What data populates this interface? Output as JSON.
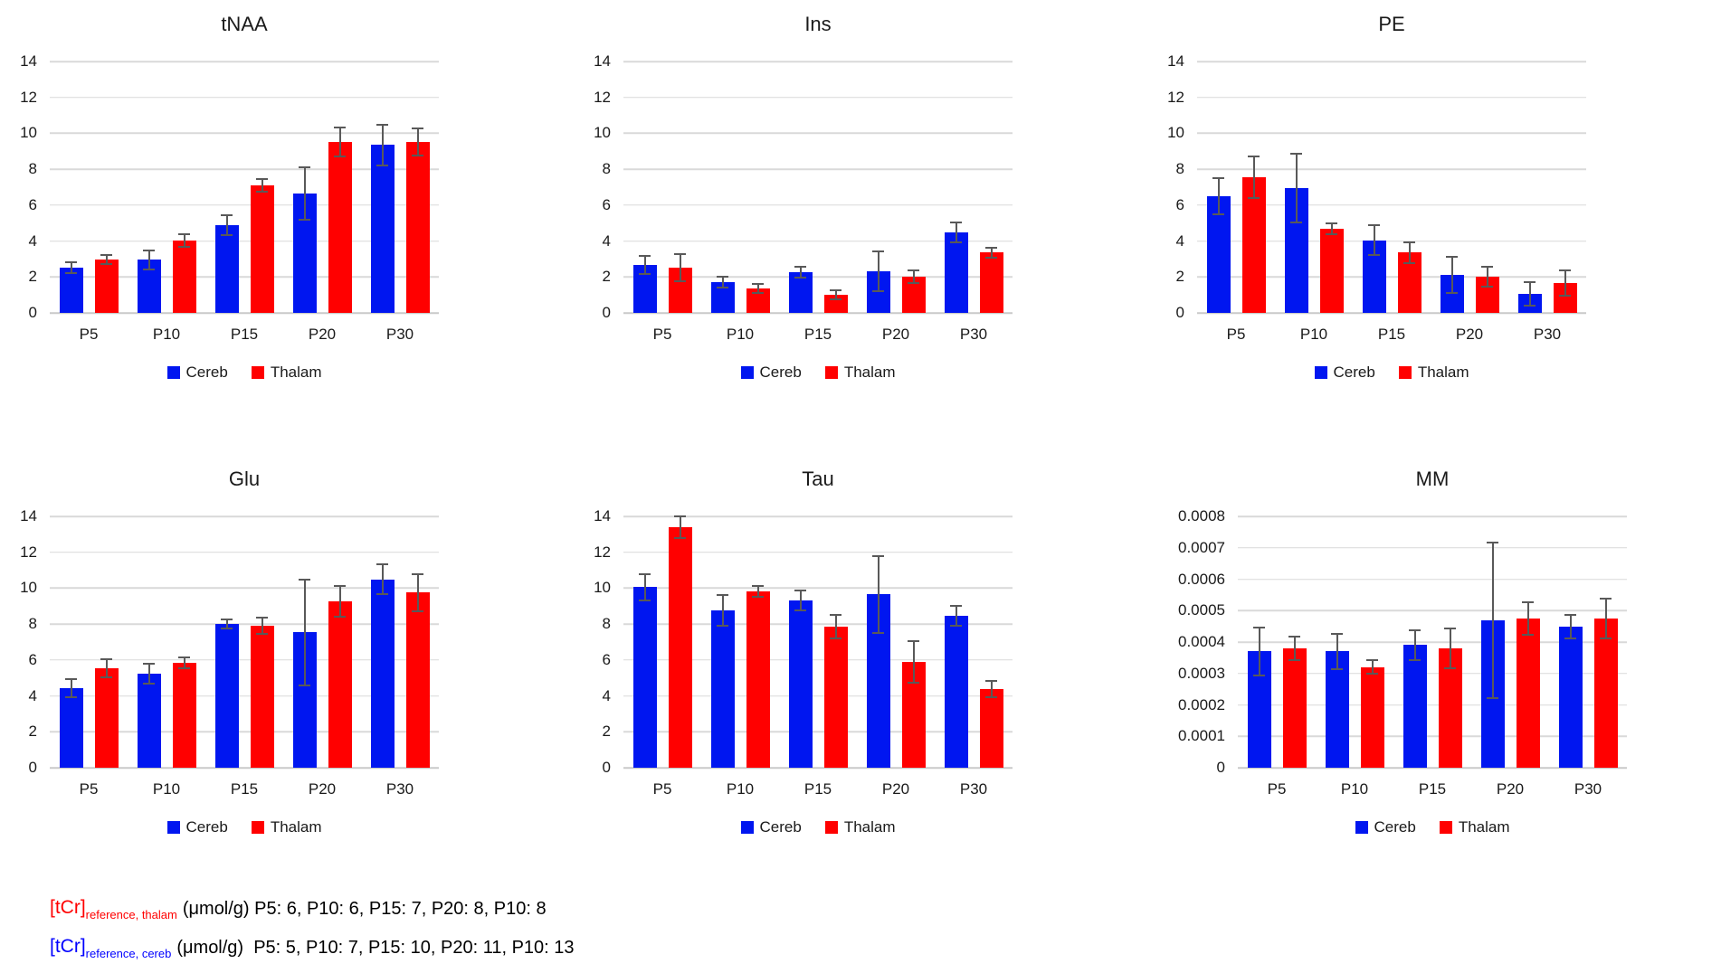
{
  "colors": {
    "cereb": "#0016f0",
    "thalam": "#ff0000",
    "error_bar": "#595959",
    "gridline": "#d9d9d9",
    "footnote_red": "#ff0000",
    "footnote_blue": "#0000ff"
  },
  "legend": {
    "items": [
      "Cereb",
      "Thalam"
    ],
    "position": "bottom"
  },
  "chart_data": [
    {
      "type": "bar",
      "title": "tNAA",
      "categories": [
        "P5",
        "P10",
        "P15",
        "P20",
        "P30"
      ],
      "series": [
        {
          "name": "Cereb",
          "color": "#0016f0",
          "values": [
            2.5,
            2.95,
            4.9,
            6.65,
            9.35
          ],
          "errors": [
            0.35,
            0.6,
            0.6,
            1.5,
            1.2
          ]
        },
        {
          "name": "Thalam",
          "color": "#ff0000",
          "values": [
            2.95,
            4.05,
            7.1,
            9.5,
            9.5
          ],
          "errors": [
            0.3,
            0.4,
            0.4,
            0.85,
            0.8
          ]
        }
      ],
      "xlabel": "",
      "ylabel": "",
      "ylim": [
        0,
        14
      ],
      "yticks": [
        "14",
        "12",
        "10",
        "8",
        "6",
        "4",
        "2",
        "0"
      ],
      "grid": true,
      "legend_position": "bottom"
    },
    {
      "type": "bar",
      "title": "Ins",
      "categories": [
        "P5",
        "P10",
        "P15",
        "P20",
        "P30"
      ],
      "series": [
        {
          "name": "Cereb",
          "color": "#0016f0",
          "values": [
            2.65,
            1.7,
            2.25,
            2.3,
            4.5
          ],
          "errors": [
            0.55,
            0.35,
            0.35,
            1.15,
            0.6
          ]
        },
        {
          "name": "Thalam",
          "color": "#ff0000",
          "values": [
            2.5,
            1.35,
            1.0,
            2.0,
            3.35
          ],
          "errors": [
            0.8,
            0.3,
            0.3,
            0.4,
            0.35
          ]
        }
      ],
      "xlabel": "",
      "ylabel": "",
      "ylim": [
        0,
        14
      ],
      "yticks": [
        "14",
        "12",
        "10",
        "8",
        "6",
        "4",
        "2",
        "0"
      ],
      "grid": true,
      "legend_position": "bottom"
    },
    {
      "type": "bar",
      "title": "PE",
      "categories": [
        "P5",
        "P10",
        "P15",
        "P20",
        "P30"
      ],
      "series": [
        {
          "name": "Cereb",
          "color": "#0016f0",
          "values": [
            6.5,
            6.95,
            4.05,
            2.1,
            1.05
          ],
          "errors": [
            1.05,
            1.95,
            0.9,
            1.05,
            0.7
          ]
        },
        {
          "name": "Thalam",
          "color": "#ff0000",
          "values": [
            7.55,
            4.7,
            3.35,
            2.0,
            1.65
          ],
          "errors": [
            1.2,
            0.35,
            0.65,
            0.6,
            0.75
          ]
        }
      ],
      "xlabel": "",
      "ylabel": "",
      "ylim": [
        0,
        14
      ],
      "yticks": [
        "14",
        "12",
        "10",
        "8",
        "6",
        "4",
        "2",
        "0"
      ],
      "grid": true,
      "legend_position": "bottom"
    },
    {
      "type": "bar",
      "title": "Glu",
      "categories": [
        "P5",
        "P10",
        "P15",
        "P20",
        "P30"
      ],
      "series": [
        {
          "name": "Cereb",
          "color": "#0016f0",
          "values": [
            4.45,
            5.25,
            8.0,
            7.55,
            10.5
          ],
          "errors": [
            0.55,
            0.6,
            0.3,
            3.0,
            0.9
          ]
        },
        {
          "name": "Thalam",
          "color": "#ff0000",
          "values": [
            5.55,
            5.85,
            7.9,
            9.25,
            9.75
          ],
          "errors": [
            0.55,
            0.35,
            0.5,
            0.9,
            1.1
          ]
        }
      ],
      "xlabel": "",
      "ylabel": "",
      "ylim": [
        0,
        14
      ],
      "yticks": [
        "14",
        "12",
        "10",
        "8",
        "6",
        "4",
        "2",
        "0"
      ],
      "grid": true,
      "legend_position": "bottom"
    },
    {
      "type": "bar",
      "title": "Tau",
      "categories": [
        "P5",
        "P10",
        "P15",
        "P20",
        "P30"
      ],
      "series": [
        {
          "name": "Cereb",
          "color": "#0016f0",
          "values": [
            10.05,
            8.75,
            9.3,
            9.65,
            8.45
          ],
          "errors": [
            0.8,
            0.9,
            0.6,
            2.2,
            0.6
          ]
        },
        {
          "name": "Thalam",
          "color": "#ff0000",
          "values": [
            13.4,
            9.8,
            7.85,
            5.9,
            4.4
          ],
          "errors": [
            0.65,
            0.35,
            0.7,
            1.2,
            0.5
          ]
        }
      ],
      "xlabel": "",
      "ylabel": "",
      "ylim": [
        0,
        14
      ],
      "yticks": [
        "14",
        "12",
        "10",
        "8",
        "6",
        "4",
        "2",
        "0"
      ],
      "grid": true,
      "legend_position": "bottom"
    },
    {
      "type": "bar",
      "title": "MM",
      "categories": [
        "P5",
        "P10",
        "P15",
        "P20",
        "P30"
      ],
      "series": [
        {
          "name": "Cereb",
          "color": "#0016f0",
          "values": [
            0.00037,
            0.00037,
            0.00039,
            0.00047,
            0.00045
          ],
          "errors": [
            8e-05,
            6e-05,
            5e-05,
            0.00025,
            4e-05
          ]
        },
        {
          "name": "Thalam",
          "color": "#ff0000",
          "values": [
            0.00038,
            0.00032,
            0.00038,
            0.000475,
            0.000475
          ],
          "errors": [
            4e-05,
            2.5e-05,
            6.5e-05,
            5.5e-05,
            6.5e-05
          ]
        }
      ],
      "xlabel": "",
      "ylabel": "",
      "ylim": [
        0,
        0.0008
      ],
      "yticks": [
        "0.0008",
        "0.0007",
        "0.0006",
        "0.0005",
        "0.0004",
        "0.0003",
        "0.0002",
        "0.0001",
        "0"
      ],
      "grid": true,
      "legend_position": "bottom"
    }
  ],
  "footnotes": [
    {
      "prefix": "[tCr]",
      "subscript": "reference, thalam",
      "color": "#ff0000",
      "text": "(μmol/g) P5: 6, P10: 6, P15: 7, P20: 8, P10: 8"
    },
    {
      "prefix": "[tCr]",
      "subscript": "reference, cereb",
      "color": "#0000ff",
      "text": "(μmol/g)  P5: 5, P10: 7, P15: 10, P20: 11, P10: 13"
    }
  ]
}
